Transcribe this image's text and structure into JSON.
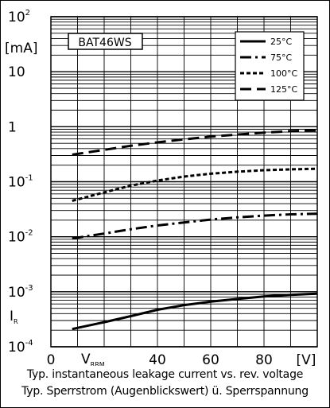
{
  "chart_data": {
    "type": "line",
    "device_label": "BAT46WS",
    "x_axis": {
      "min": 0,
      "max": 100,
      "ticks": [
        0,
        40,
        60,
        80
      ],
      "tick_labels": [
        "0",
        "40",
        "60",
        "80"
      ],
      "label": "V",
      "label_subscript": "RRM",
      "unit": "[V]"
    },
    "y_axis": {
      "scale": "log",
      "min": 0.0001,
      "max": 100,
      "tick_labels": [
        {
          "value": 100,
          "base": "10",
          "exp": "2"
        },
        {
          "value": 10,
          "base": "10",
          "exp": ""
        },
        {
          "value": 1,
          "base": "1",
          "exp": ""
        },
        {
          "value": 0.1,
          "base": "10",
          "exp": "-1"
        },
        {
          "value": 0.01,
          "base": "10",
          "exp": "-2"
        },
        {
          "value": 0.001,
          "base": "10",
          "exp": "-3"
        },
        {
          "value": 0.0001,
          "base": "10",
          "exp": "-4"
        }
      ],
      "unit": "[mA]",
      "label": "I",
      "label_subscript": "R"
    },
    "grid": true,
    "legend_position": "top-right",
    "series": [
      {
        "name": "25°C",
        "dash": "solid",
        "x": [
          8,
          20,
          30,
          40,
          50,
          60,
          70,
          80,
          90,
          100
        ],
        "y": [
          0.00021,
          0.00028,
          0.00036,
          0.00047,
          0.00057,
          0.00066,
          0.00074,
          0.00082,
          0.00088,
          0.00092
        ]
      },
      {
        "name": "75°C",
        "dash": "dash-dot",
        "x": [
          8,
          20,
          30,
          40,
          50,
          60,
          70,
          80,
          90,
          100
        ],
        "y": [
          0.0093,
          0.0114,
          0.0137,
          0.016,
          0.0182,
          0.0205,
          0.0225,
          0.0242,
          0.0255,
          0.0262
        ]
      },
      {
        "name": "100°C",
        "dash": "short-dash",
        "x": [
          8,
          20,
          30,
          40,
          50,
          60,
          70,
          80,
          90,
          100
        ],
        "y": [
          0.045,
          0.064,
          0.085,
          0.105,
          0.124,
          0.14,
          0.152,
          0.162,
          0.168,
          0.172
        ]
      },
      {
        "name": "125°C",
        "dash": "long-dash",
        "x": [
          8,
          20,
          30,
          40,
          50,
          60,
          70,
          80,
          90,
          100
        ],
        "y": [
          0.31,
          0.38,
          0.45,
          0.52,
          0.59,
          0.66,
          0.72,
          0.78,
          0.83,
          0.86
        ]
      }
    ]
  },
  "captions": {
    "line1": "Typ. instantaneous leakage current vs. rev. voltage",
    "line2": "Typ. Sperrstrom (Augenblickswert) ü. Sperrspannung"
  }
}
